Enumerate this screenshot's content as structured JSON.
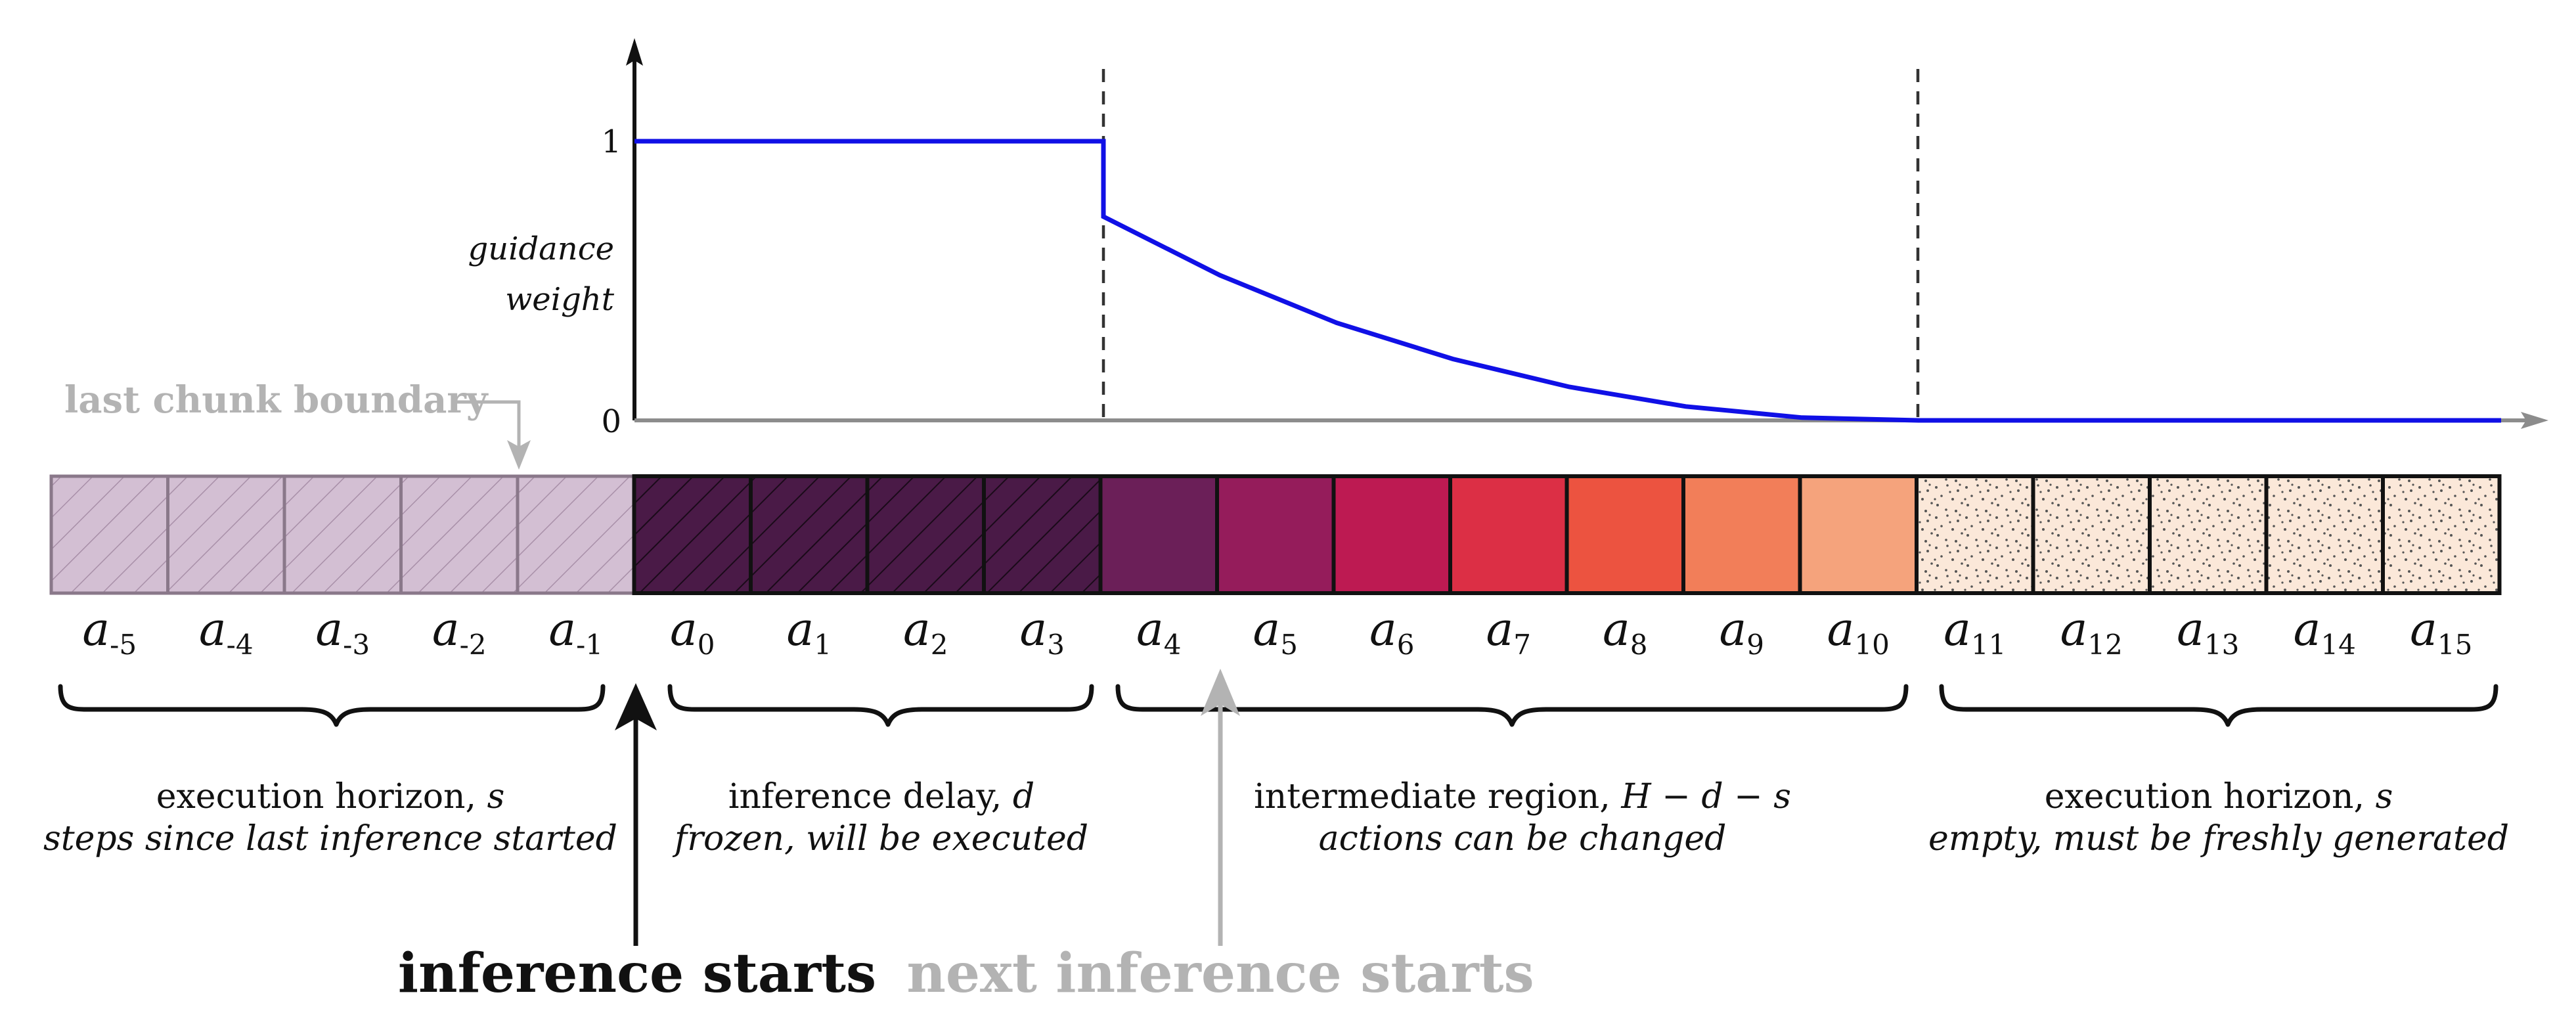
{
  "chart_data": {
    "type": "line",
    "ylabel": [
      "guidance",
      "weight"
    ],
    "yticks": [
      "1",
      "0"
    ],
    "ylim": [
      0,
      1
    ],
    "x": [
      0,
      1,
      2,
      3,
      4,
      5,
      6,
      7,
      8,
      9,
      10,
      11,
      12,
      13,
      14,
      15
    ],
    "series": [
      {
        "values": [
          1,
          1,
          1,
          1,
          0.73,
          0.52,
          0.35,
          0.22,
          0.12,
          0.05,
          0.01,
          0,
          0,
          0,
          0,
          0
        ]
      }
    ]
  },
  "annotations": {
    "last_chunk_boundary": "last chunk boundary",
    "inference_starts": "inference starts",
    "next_inference_starts": "next inference starts"
  },
  "actions": [
    {
      "base": "a",
      "sub": "-5",
      "group": "past",
      "color": "#d3bfd3"
    },
    {
      "base": "a",
      "sub": "-4",
      "group": "past",
      "color": "#d3bfd3"
    },
    {
      "base": "a",
      "sub": "-3",
      "group": "past",
      "color": "#d3bfd3"
    },
    {
      "base": "a",
      "sub": "-2",
      "group": "past",
      "color": "#d3bfd3"
    },
    {
      "base": "a",
      "sub": "-1",
      "group": "past",
      "color": "#d3bfd3"
    },
    {
      "base": "a",
      "sub": "0",
      "group": "frozen",
      "color": "#4a1a47"
    },
    {
      "base": "a",
      "sub": "1",
      "group": "frozen",
      "color": "#4a1a47"
    },
    {
      "base": "a",
      "sub": "2",
      "group": "frozen",
      "color": "#4a1a47"
    },
    {
      "base": "a",
      "sub": "3",
      "group": "frozen",
      "color": "#4a1a47"
    },
    {
      "base": "a",
      "sub": "4",
      "group": "intermediate",
      "color": "#6b1f58"
    },
    {
      "base": "a",
      "sub": "5",
      "group": "intermediate",
      "color": "#951c5b"
    },
    {
      "base": "a",
      "sub": "6",
      "group": "intermediate",
      "color": "#bd1a52"
    },
    {
      "base": "a",
      "sub": "7",
      "group": "intermediate",
      "color": "#dc2f45"
    },
    {
      "base": "a",
      "sub": "8",
      "group": "intermediate",
      "color": "#ec5340"
    },
    {
      "base": "a",
      "sub": "9",
      "group": "intermediate",
      "color": "#f27e59"
    },
    {
      "base": "a",
      "sub": "10",
      "group": "intermediate",
      "color": "#f5a37c"
    },
    {
      "base": "a",
      "sub": "11",
      "group": "empty",
      "color": "#fbe8d9"
    },
    {
      "base": "a",
      "sub": "12",
      "group": "empty",
      "color": "#fbe8d9"
    },
    {
      "base": "a",
      "sub": "13",
      "group": "empty",
      "color": "#fbe8d9"
    },
    {
      "base": "a",
      "sub": "14",
      "group": "empty",
      "color": "#fbe8d9"
    },
    {
      "base": "a",
      "sub": "15",
      "group": "empty",
      "color": "#fbe8d9"
    }
  ],
  "regions": [
    {
      "line1_prefix": "execution horizon, ",
      "line1_var": "s",
      "line2": "steps since last inference started"
    },
    {
      "line1_prefix": "inference delay, ",
      "line1_var": "d",
      "line2": "frozen, will be executed"
    },
    {
      "line1_prefix": "intermediate region, ",
      "line1_var": "H − d − s",
      "line2": "actions can be changed"
    },
    {
      "line1_prefix": "execution horizon, ",
      "line1_var": "s",
      "line2": "empty, must be freshly generated"
    }
  ]
}
